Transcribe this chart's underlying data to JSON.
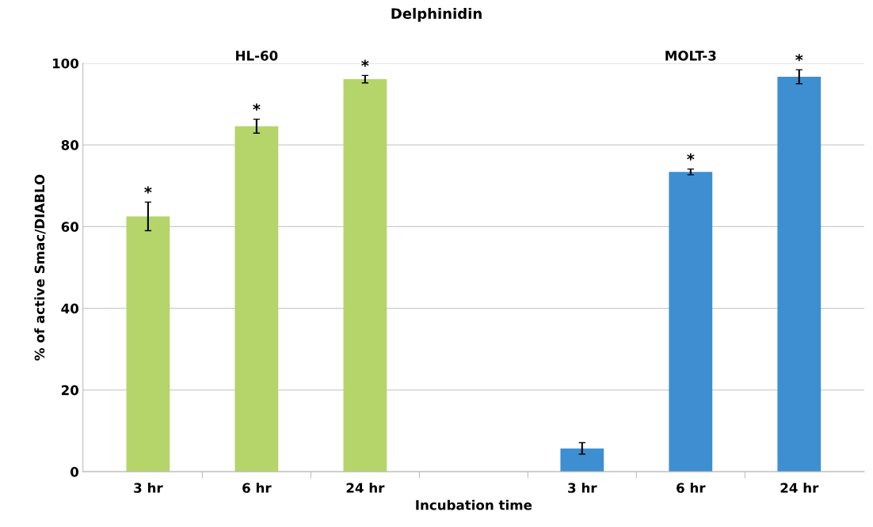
{
  "chart_data": {
    "type": "bar",
    "title": "Delphinidin",
    "xlabel": "Incubation time",
    "ylabel": "% of active Smac/DIABLO",
    "categories": [
      "3 hr",
      "6 hr",
      "24 hr",
      null,
      "3 hr",
      "6 hr",
      "24 hr"
    ],
    "series": [
      {
        "color": "#b5d56a",
        "values": [
          62.5,
          84.6,
          96.1,
          null,
          null,
          null,
          null
        ],
        "errors": [
          3.5,
          1.7,
          0.9,
          null,
          null,
          null,
          null
        ],
        "value_labels": [
          "*",
          "*",
          "*",
          null,
          null,
          null,
          null
        ]
      },
      {
        "color": "#3d8fd1",
        "values": [
          null,
          null,
          null,
          null,
          5.7,
          73.4,
          96.7
        ],
        "errors": [
          null,
          null,
          null,
          null,
          1.4,
          0.7,
          1.7
        ],
        "value_labels": [
          null,
          null,
          null,
          null,
          null,
          "*",
          "*"
        ]
      }
    ],
    "annotations": [
      "HL-60",
      "MOLT-3"
    ],
    "ylim": [
      0,
      100
    ],
    "yticks": [
      0,
      20,
      40,
      60,
      80,
      100
    ],
    "grid": "y"
  }
}
